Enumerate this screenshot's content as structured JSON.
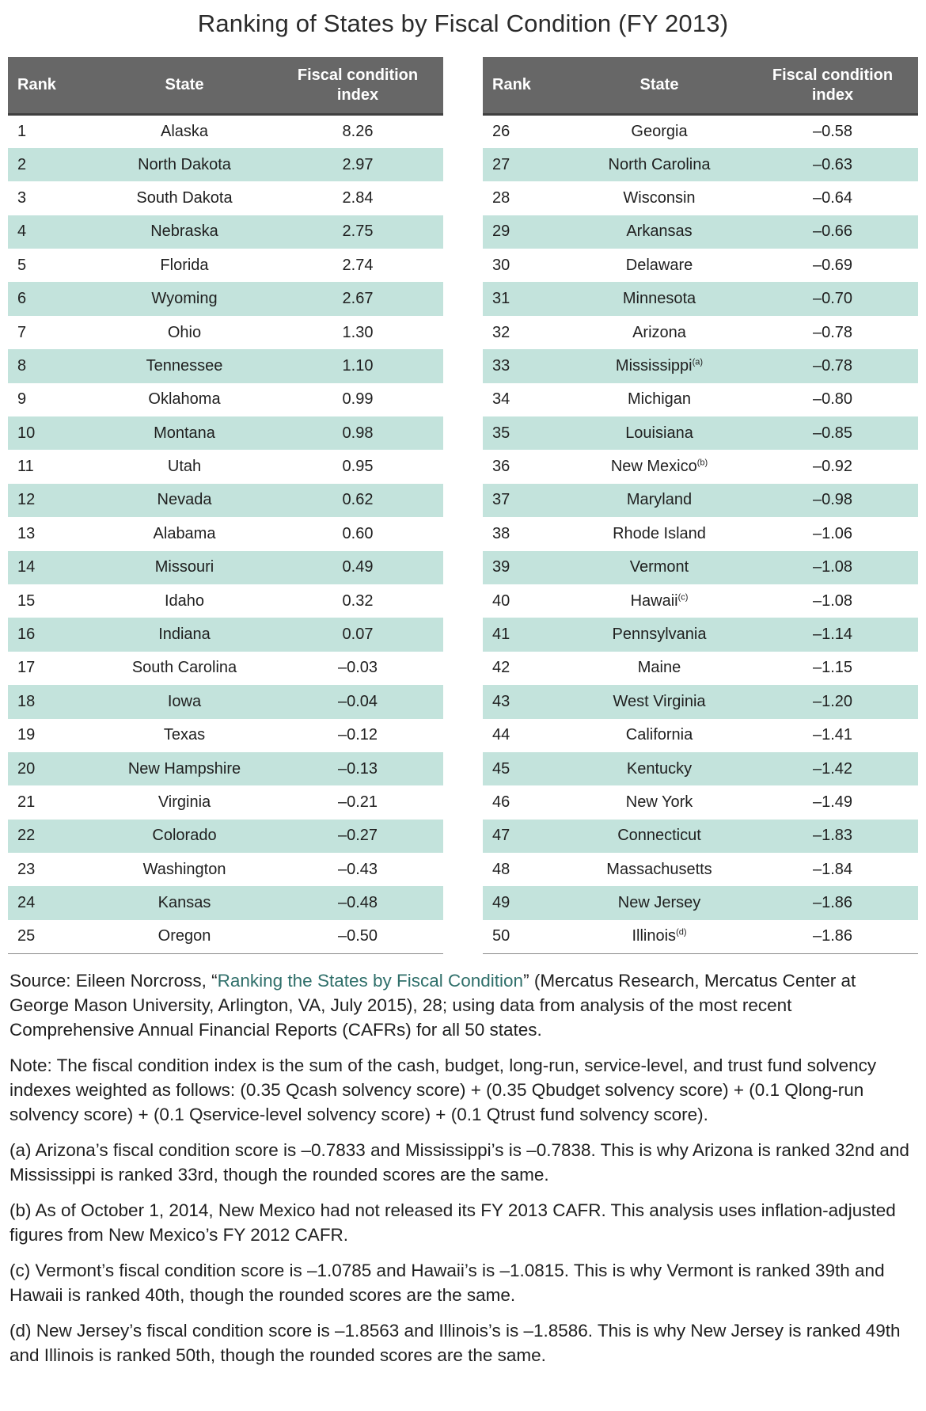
{
  "title": "Ranking of States by Fiscal Condition (FY 2013)",
  "table": {
    "headers": {
      "rank": "Rank",
      "state": "State",
      "index_line1": "Fiscal condition",
      "index_line2": "index"
    },
    "rows": [
      {
        "rank": "1",
        "state": "Alaska",
        "fn": "",
        "value": "8.26"
      },
      {
        "rank": "2",
        "state": "North Dakota",
        "fn": "",
        "value": "2.97"
      },
      {
        "rank": "3",
        "state": "South Dakota",
        "fn": "",
        "value": "2.84"
      },
      {
        "rank": "4",
        "state": "Nebraska",
        "fn": "",
        "value": "2.75"
      },
      {
        "rank": "5",
        "state": "Florida",
        "fn": "",
        "value": "2.74"
      },
      {
        "rank": "6",
        "state": "Wyoming",
        "fn": "",
        "value": "2.67"
      },
      {
        "rank": "7",
        "state": "Ohio",
        "fn": "",
        "value": "1.30"
      },
      {
        "rank": "8",
        "state": "Tennessee",
        "fn": "",
        "value": "1.10"
      },
      {
        "rank": "9",
        "state": "Oklahoma",
        "fn": "",
        "value": "0.99"
      },
      {
        "rank": "10",
        "state": "Montana",
        "fn": "",
        "value": "0.98"
      },
      {
        "rank": "11",
        "state": "Utah",
        "fn": "",
        "value": "0.95"
      },
      {
        "rank": "12",
        "state": "Nevada",
        "fn": "",
        "value": "0.62"
      },
      {
        "rank": "13",
        "state": "Alabama",
        "fn": "",
        "value": "0.60"
      },
      {
        "rank": "14",
        "state": "Missouri",
        "fn": "",
        "value": "0.49"
      },
      {
        "rank": "15",
        "state": "Idaho",
        "fn": "",
        "value": "0.32"
      },
      {
        "rank": "16",
        "state": "Indiana",
        "fn": "",
        "value": "0.07"
      },
      {
        "rank": "17",
        "state": "South Carolina",
        "fn": "",
        "value": "–0.03"
      },
      {
        "rank": "18",
        "state": "Iowa",
        "fn": "",
        "value": "–0.04"
      },
      {
        "rank": "19",
        "state": "Texas",
        "fn": "",
        "value": "–0.12"
      },
      {
        "rank": "20",
        "state": "New Hampshire",
        "fn": "",
        "value": "–0.13"
      },
      {
        "rank": "21",
        "state": "Virginia",
        "fn": "",
        "value": "–0.21"
      },
      {
        "rank": "22",
        "state": "Colorado",
        "fn": "",
        "value": "–0.27"
      },
      {
        "rank": "23",
        "state": "Washington",
        "fn": "",
        "value": "–0.43"
      },
      {
        "rank": "24",
        "state": "Kansas",
        "fn": "",
        "value": "–0.48"
      },
      {
        "rank": "25",
        "state": "Oregon",
        "fn": "",
        "value": "–0.50"
      },
      {
        "rank": "26",
        "state": "Georgia",
        "fn": "",
        "value": "–0.58"
      },
      {
        "rank": "27",
        "state": "North Carolina",
        "fn": "",
        "value": "–0.63"
      },
      {
        "rank": "28",
        "state": "Wisconsin",
        "fn": "",
        "value": "–0.64"
      },
      {
        "rank": "29",
        "state": "Arkansas",
        "fn": "",
        "value": "–0.66"
      },
      {
        "rank": "30",
        "state": "Delaware",
        "fn": "",
        "value": "–0.69"
      },
      {
        "rank": "31",
        "state": "Minnesota",
        "fn": "",
        "value": "–0.70"
      },
      {
        "rank": "32",
        "state": "Arizona",
        "fn": "",
        "value": "–0.78"
      },
      {
        "rank": "33",
        "state": "Mississippi",
        "fn": "(a)",
        "value": "–0.78"
      },
      {
        "rank": "34",
        "state": "Michigan",
        "fn": "",
        "value": "–0.80"
      },
      {
        "rank": "35",
        "state": "Louisiana",
        "fn": "",
        "value": "–0.85"
      },
      {
        "rank": "36",
        "state": "New Mexico",
        "fn": "(b)",
        "value": "–0.92"
      },
      {
        "rank": "37",
        "state": "Maryland",
        "fn": "",
        "value": "–0.98"
      },
      {
        "rank": "38",
        "state": "Rhode Island",
        "fn": "",
        "value": "–1.06"
      },
      {
        "rank": "39",
        "state": "Vermont",
        "fn": "",
        "value": "–1.08"
      },
      {
        "rank": "40",
        "state": "Hawaii",
        "fn": "(c)",
        "value": "–1.08"
      },
      {
        "rank": "41",
        "state": "Pennsylvania",
        "fn": "",
        "value": "–1.14"
      },
      {
        "rank": "42",
        "state": "Maine",
        "fn": "",
        "value": "–1.15"
      },
      {
        "rank": "43",
        "state": "West Virginia",
        "fn": "",
        "value": "–1.20"
      },
      {
        "rank": "44",
        "state": "California",
        "fn": "",
        "value": "–1.41"
      },
      {
        "rank": "45",
        "state": "Kentucky",
        "fn": "",
        "value": "–1.42"
      },
      {
        "rank": "46",
        "state": "New York",
        "fn": "",
        "value": "–1.49"
      },
      {
        "rank": "47",
        "state": "Connecticut",
        "fn": "",
        "value": "–1.83"
      },
      {
        "rank": "48",
        "state": "Massachusetts",
        "fn": "",
        "value": "–1.84"
      },
      {
        "rank": "49",
        "state": "New Jersey",
        "fn": "",
        "value": "–1.86"
      },
      {
        "rank": "50",
        "state": "Illinois",
        "fn": "(d)",
        "value": "–1.86"
      }
    ]
  },
  "notes": {
    "source_prefix": "Source: Eileen Norcross, “",
    "source_link": "Ranking the States by Fiscal Condition",
    "source_suffix": "” (Mercatus Research, Mercatus Center at George Mason University, Arlington, VA, July 2015), 28; using data from analysis of the most recent Comprehensive Annual Financial Reports (CAFRs) for all 50 states.",
    "note": "Note: The fiscal condition index is the sum of the cash, budget, long-run, service-level, and trust fund solvency indexes weighted as follows: (0.35 Qcash solvency score) + (0.35 Qbudget solvency score) + (0.1 Qlong-run solvency score) + (0.1 Qservice-level solvency score) + (0.1 Qtrust fund solvency score).",
    "a": "(a) Arizona’s fiscal condition score is –0.7833 and Mississippi’s is –0.7838. This is why Arizona is ranked 32nd and Mississippi is ranked 33rd, though the rounded scores are the same.",
    "b": "(b) As of October 1, 2014, New Mexico had not released its FY 2013 CAFR. This analysis uses inflation-adjusted figures from New Mexico’s FY 2012 CAFR.",
    "c": "(c) Vermont’s fiscal condition score is –1.0785 and Hawaii’s is –1.0815. This is why Vermont is ranked 39th and Hawaii is ranked 40th, though the rounded scores are the same.",
    "d": "(d) New Jersey’s fiscal condition score is –1.8563 and Illinois’s is –1.8586. This is why New Jersey is ranked 49th and Illinois is ranked 50th, though the rounded scores are the same."
  }
}
